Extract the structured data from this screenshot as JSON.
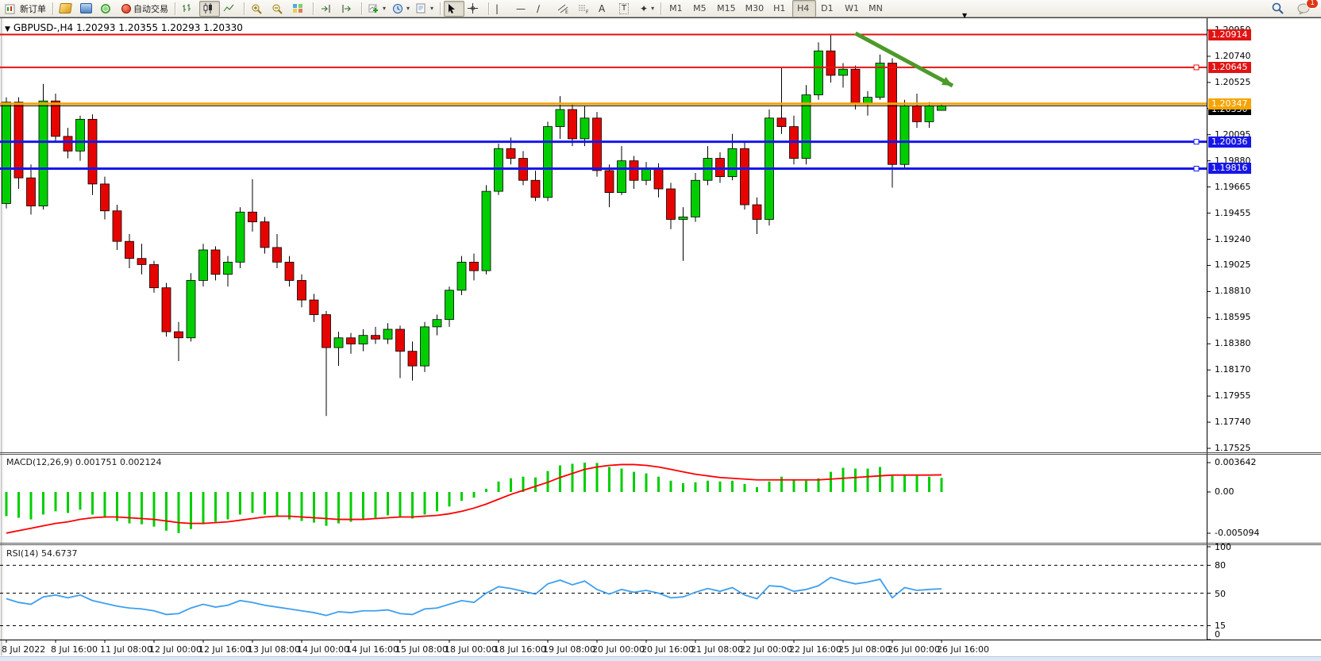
{
  "toolbar": {
    "new_order": "新订单",
    "auto_trading": "自动交易",
    "timeframes": [
      "M1",
      "M5",
      "M15",
      "M30",
      "H1",
      "H4",
      "D1",
      "W1",
      "MN"
    ],
    "active_timeframe": "H4",
    "badge_count": "1"
  },
  "chart_data": {
    "type": "candlestick",
    "symbol": "GBPUSD-",
    "timeframe": "H4",
    "header": "GBPUSD-,H4  1.20293 1.20355 1.20293 1.20330",
    "ohlc": {
      "open": "1.20293",
      "high": "1.20355",
      "low": "1.20293",
      "close": "1.20330"
    },
    "colors": {
      "bull": "#00CE00",
      "bear": "#E60400",
      "wick": "#000000",
      "macd_hist": "#00CE00",
      "macd_signal": "#FF0000",
      "rsi_line": "#3E9FEF",
      "arrow": "#4C9A2A",
      "level_red": "#E01414",
      "level_orange": "#F5A400",
      "level_blue": "#1717E8",
      "current": "#000000"
    },
    "price_ticks": [
      "1.20950",
      "1.20740",
      "1.20525",
      "1.20310",
      "1.20095",
      "1.19880",
      "1.19665",
      "1.19455",
      "1.19240",
      "1.19025",
      "1.18810",
      "1.18595",
      "1.18380",
      "1.18170",
      "1.17955",
      "1.17740",
      "1.17525"
    ],
    "hlines": [
      {
        "price": 1.20914,
        "label": "1.20914",
        "color": "#E01414",
        "width": 2,
        "handle": false
      },
      {
        "price": 1.20645,
        "label": "1.20645",
        "color": "#E01414",
        "width": 2,
        "handle": true
      },
      {
        "price": 1.20347,
        "label": "1.20347",
        "color": "#F5A400",
        "width": 3,
        "handle": false
      },
      {
        "price": 1.20036,
        "label": "1.20036",
        "color": "#1717E8",
        "width": 3,
        "handle": true
      },
      {
        "price": 1.19816,
        "label": "1.19816",
        "color": "#1717E8",
        "width": 3,
        "handle": true
      }
    ],
    "current_price_line": {
      "price": 1.2033,
      "label": "1.20330",
      "color": "#000000"
    },
    "arrow": {
      "from_bar": 69.0,
      "from_price": 1.20924,
      "to_bar": 76.9,
      "to_price": 1.20495
    },
    "date_labels": [
      {
        "i": 0,
        "t": "8 Jul 2022"
      },
      {
        "i": 4,
        "t": "8 Jul 16:00"
      },
      {
        "i": 8,
        "t": "11 Jul 08:00"
      },
      {
        "i": 12,
        "t": "12 Jul 00:00"
      },
      {
        "i": 16,
        "t": "12 Jul 16:00"
      },
      {
        "i": 20,
        "t": "13 Jul 08:00"
      },
      {
        "i": 24,
        "t": "14 Jul 00:00"
      },
      {
        "i": 28,
        "t": "14 Jul 16:00"
      },
      {
        "i": 32,
        "t": "15 Jul 08:00"
      },
      {
        "i": 36,
        "t": "18 Jul 00:00"
      },
      {
        "i": 40,
        "t": "18 Jul 16:00"
      },
      {
        "i": 44,
        "t": "19 Jul 08:00"
      },
      {
        "i": 48,
        "t": "20 Jul 00:00"
      },
      {
        "i": 52,
        "t": "20 Jul 16:00"
      },
      {
        "i": 56,
        "t": "21 Jul 08:00"
      },
      {
        "i": 60,
        "t": "22 Jul 00:00"
      },
      {
        "i": 64,
        "t": "22 Jul 16:00"
      },
      {
        "i": 68,
        "t": "25 Jul 08:00"
      },
      {
        "i": 72,
        "t": "26 Jul 00:00"
      },
      {
        "i": 76,
        "t": "26 Jul 16:00"
      }
    ],
    "candles": [
      [
        1.1953,
        1.204,
        1.1949,
        1.2036
      ],
      [
        1.2036,
        1.204,
        1.1965,
        1.1974
      ],
      [
        1.1974,
        1.1985,
        1.1944,
        1.1951
      ],
      [
        1.1951,
        1.2051,
        1.1948,
        1.2037
      ],
      [
        1.2037,
        1.2043,
        1.2003,
        1.2008
      ],
      [
        1.2008,
        1.2015,
        1.199,
        1.1996
      ],
      [
        1.1996,
        1.2025,
        1.1988,
        1.2022
      ],
      [
        1.2022,
        1.2026,
        1.196,
        1.1969
      ],
      [
        1.1969,
        1.1975,
        1.194,
        1.1947
      ],
      [
        1.1947,
        1.1952,
        1.1915,
        1.1922
      ],
      [
        1.1922,
        1.1928,
        1.19,
        1.1908
      ],
      [
        1.1908,
        1.192,
        1.1895,
        1.1903
      ],
      [
        1.1903,
        1.1906,
        1.188,
        1.1884
      ],
      [
        1.1884,
        1.1888,
        1.1844,
        1.1848
      ],
      [
        1.1848,
        1.1856,
        1.1824,
        1.1843
      ],
      [
        1.1843,
        1.1896,
        1.184,
        1.189
      ],
      [
        1.189,
        1.192,
        1.1885,
        1.1915
      ],
      [
        1.1915,
        1.1918,
        1.189,
        1.1895
      ],
      [
        1.1895,
        1.191,
        1.1885,
        1.1905
      ],
      [
        1.1905,
        1.195,
        1.19,
        1.1946
      ],
      [
        1.1946,
        1.1973,
        1.193,
        1.1938
      ],
      [
        1.1938,
        1.1942,
        1.1912,
        1.1917
      ],
      [
        1.1917,
        1.1928,
        1.19,
        1.1905
      ],
      [
        1.1905,
        1.191,
        1.1885,
        1.189
      ],
      [
        1.189,
        1.1895,
        1.1868,
        1.1874
      ],
      [
        1.1874,
        1.1879,
        1.1856,
        1.1862
      ],
      [
        1.1862,
        1.1865,
        1.1779,
        1.1835
      ],
      [
        1.1835,
        1.1848,
        1.182,
        1.1843
      ],
      [
        1.1843,
        1.1847,
        1.183,
        1.1838
      ],
      [
        1.1838,
        1.185,
        1.1832,
        1.1845
      ],
      [
        1.1845,
        1.1852,
        1.1838,
        1.1842
      ],
      [
        1.1842,
        1.1855,
        1.1838,
        1.185
      ],
      [
        1.185,
        1.1853,
        1.181,
        1.1832
      ],
      [
        1.1832,
        1.184,
        1.1808,
        1.182
      ],
      [
        1.182,
        1.1856,
        1.1815,
        1.1852
      ],
      [
        1.1852,
        1.1862,
        1.1845,
        1.1858
      ],
      [
        1.1858,
        1.1885,
        1.1852,
        1.1882
      ],
      [
        1.1882,
        1.191,
        1.1878,
        1.1905
      ],
      [
        1.1905,
        1.1912,
        1.189,
        1.1898
      ],
      [
        1.1898,
        1.1968,
        1.1895,
        1.1963
      ],
      [
        1.1963,
        1.2002,
        1.196,
        1.1998
      ],
      [
        1.1998,
        1.2007,
        1.1985,
        1.199
      ],
      [
        1.199,
        1.1996,
        1.1968,
        1.1972
      ],
      [
        1.1972,
        1.198,
        1.1955,
        1.1958
      ],
      [
        1.1958,
        1.202,
        1.1955,
        1.2016
      ],
      [
        1.2016,
        1.2041,
        1.2006,
        1.203
      ],
      [
        1.203,
        1.2035,
        1.2,
        1.2006
      ],
      [
        1.2006,
        1.2033,
        1.2,
        1.2023
      ],
      [
        1.2023,
        1.2028,
        1.1975,
        1.198
      ],
      [
        1.198,
        1.1985,
        1.195,
        1.1962
      ],
      [
        1.1962,
        1.2,
        1.196,
        1.1988
      ],
      [
        1.1988,
        1.1992,
        1.1965,
        1.1972
      ],
      [
        1.1972,
        1.1987,
        1.1968,
        1.1982
      ],
      [
        1.1982,
        1.1986,
        1.1958,
        1.1965
      ],
      [
        1.1965,
        1.197,
        1.1932,
        1.194
      ],
      [
        1.194,
        1.195,
        1.1906,
        1.1942
      ],
      [
        1.1942,
        1.1978,
        1.1938,
        1.1972
      ],
      [
        1.1972,
        1.2,
        1.1968,
        1.199
      ],
      [
        1.199,
        1.1995,
        1.197,
        1.1975
      ],
      [
        1.1975,
        1.201,
        1.1972,
        1.1998
      ],
      [
        1.1998,
        1.2003,
        1.1948,
        1.1952
      ],
      [
        1.1952,
        1.1958,
        1.1928,
        1.194
      ],
      [
        1.194,
        1.203,
        1.1935,
        1.2023
      ],
      [
        1.2023,
        1.2064,
        1.201,
        1.2016
      ],
      [
        1.2016,
        1.2025,
        1.1985,
        1.199
      ],
      [
        1.199,
        1.205,
        1.1985,
        1.2042
      ],
      [
        1.2042,
        1.2085,
        1.2038,
        1.2078
      ],
      [
        1.2078,
        1.20914,
        1.2052,
        1.2058
      ],
      [
        1.2058,
        1.2068,
        1.2048,
        1.2063
      ],
      [
        1.2063,
        1.2066,
        1.203,
        1.2035
      ],
      [
        1.2035,
        1.2045,
        1.2025,
        1.204
      ],
      [
        1.204,
        1.2075,
        1.2038,
        1.2068
      ],
      [
        1.2068,
        1.2072,
        1.1966,
        1.1985
      ],
      [
        1.1985,
        1.2038,
        1.1982,
        1.2033
      ],
      [
        1.2033,
        1.2043,
        1.2015,
        1.202
      ],
      [
        1.202,
        1.2036,
        1.2015,
        1.2033
      ],
      [
        1.20293,
        1.20355,
        1.20293,
        1.2033
      ]
    ],
    "macd": {
      "name": "MACD(12,26,9)",
      "values": "0.001751 0.002124",
      "axis_ticks": [
        "0.003642",
        "0.00",
        "-0.005094"
      ],
      "hist": [
        -0.003,
        -0.0032,
        -0.0034,
        -0.0028,
        -0.0024,
        -0.0026,
        -0.0022,
        -0.0028,
        -0.0032,
        -0.0036,
        -0.0039,
        -0.004,
        -0.0043,
        -0.0048,
        -0.0051,
        -0.0046,
        -0.004,
        -0.0037,
        -0.0034,
        -0.0028,
        -0.0026,
        -0.0028,
        -0.0031,
        -0.0034,
        -0.0036,
        -0.0038,
        -0.0042,
        -0.0039,
        -0.0037,
        -0.0034,
        -0.0032,
        -0.0029,
        -0.0031,
        -0.0033,
        -0.0028,
        -0.0024,
        -0.0018,
        -0.0011,
        -0.0007,
        0.0004,
        0.0013,
        0.0017,
        0.0019,
        0.0018,
        0.0026,
        0.0033,
        0.0035,
        0.00364,
        0.0036,
        0.0031,
        0.0029,
        0.0025,
        0.0023,
        0.0019,
        0.0014,
        0.0011,
        0.0012,
        0.0014,
        0.0013,
        0.0014,
        0.001,
        0.0006,
        0.0013,
        0.0019,
        0.0015,
        0.0014,
        0.0017,
        0.0025,
        0.003,
        0.0029,
        0.0029,
        0.0031,
        0.002,
        0.0021,
        0.002,
        0.0019,
        0.00175
      ],
      "signal": [
        -0.0051,
        -0.0048,
        -0.0045,
        -0.0042,
        -0.0039,
        -0.0037,
        -0.0034,
        -0.0032,
        -0.0031,
        -0.0031,
        -0.0032,
        -0.0033,
        -0.0034,
        -0.0036,
        -0.0038,
        -0.0039,
        -0.0039,
        -0.0038,
        -0.0037,
        -0.0035,
        -0.0033,
        -0.0031,
        -0.003,
        -0.003,
        -0.0031,
        -0.0032,
        -0.0033,
        -0.0034,
        -0.0034,
        -0.0034,
        -0.0033,
        -0.0032,
        -0.0031,
        -0.0031,
        -0.003,
        -0.0029,
        -0.0027,
        -0.0024,
        -0.002,
        -0.0015,
        -0.0009,
        -0.0003,
        0.0002,
        0.0007,
        0.0012,
        0.0018,
        0.0023,
        0.0028,
        0.0031,
        0.0033,
        0.0034,
        0.0034,
        0.0033,
        0.0031,
        0.0028,
        0.0025,
        0.0022,
        0.002,
        0.0018,
        0.0017,
        0.0016,
        0.0015,
        0.0015,
        0.0015,
        0.0015,
        0.0015,
        0.0015,
        0.0016,
        0.0017,
        0.0018,
        0.0019,
        0.002,
        0.0021,
        0.0021,
        0.0021,
        0.0021,
        0.002124
      ]
    },
    "rsi": {
      "name": "RSI(14)",
      "value": "54.6737",
      "axis_ticks": [
        "100",
        "80",
        "50",
        "15",
        "0"
      ],
      "levels": [
        80,
        50,
        15
      ],
      "values": [
        44,
        40,
        38,
        46,
        48,
        45,
        48,
        42,
        39,
        36,
        34,
        33,
        31,
        27,
        28,
        34,
        38,
        35,
        37,
        42,
        40,
        37,
        35,
        33,
        31,
        29,
        26,
        30,
        29,
        31,
        31,
        32,
        28,
        27,
        33,
        34,
        38,
        42,
        40,
        50,
        57,
        55,
        52,
        49,
        60,
        64,
        59,
        63,
        54,
        49,
        54,
        51,
        53,
        50,
        45,
        46,
        51,
        55,
        52,
        56,
        48,
        44,
        58,
        57,
        52,
        54,
        58,
        67,
        63,
        60,
        62,
        65,
        45,
        56,
        53,
        54,
        54.7
      ]
    }
  }
}
